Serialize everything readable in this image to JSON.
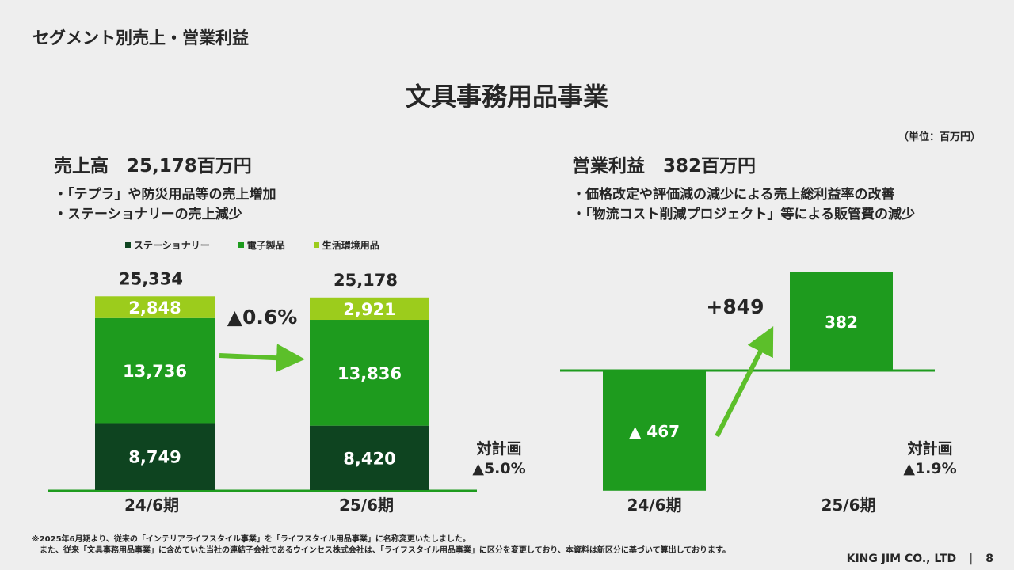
{
  "header": {
    "title": "セグメント別売上・営業利益"
  },
  "main_title": "文具事務用品事業",
  "unit_label": "（単位：百万円）",
  "left": {
    "title": "売上高　25,178百万円",
    "bullets": [
      "・「テプラ」や防災用品等の売上増加",
      "・ステーショナリーの売上減少"
    ],
    "legend": [
      {
        "label": "ステーショナリー",
        "color": "#0e4420"
      },
      {
        "label": "電子製品",
        "color": "#1e9b1e"
      },
      {
        "label": "生活環境用品",
        "color": "#9ccc1c"
      }
    ]
  },
  "right": {
    "title": "営業利益　382百万円",
    "bullets": [
      "・価格改定や評価減の減少による売上総利益率の改善",
      "・「物流コスト削減プロジェクト」等による販管費の減少"
    ]
  },
  "chart_data": [
    {
      "type": "bar",
      "stacked": true,
      "title": "売上高",
      "categories": [
        "24/6期",
        "25/6期"
      ],
      "series": [
        {
          "name": "ステーショナリー",
          "values": [
            8749,
            8420
          ],
          "labels": [
            "8,749",
            "8,420"
          ],
          "color": "#0e4420"
        },
        {
          "name": "電子製品",
          "values": [
            13736,
            13836
          ],
          "labels": [
            "13,736",
            "13,836"
          ],
          "color": "#1e9b1e"
        },
        {
          "name": "生活環境用品",
          "values": [
            2848,
            2921
          ],
          "labels": [
            "2,848",
            "2,921"
          ],
          "color": "#9ccc1c"
        }
      ],
      "totals": [
        25334,
        25178
      ],
      "total_labels": [
        "25,334",
        "25,178"
      ],
      "change_label": "▲0.6%",
      "plan_label": "対計画",
      "plan_value": "▲5.0%"
    },
    {
      "type": "bar",
      "title": "営業利益",
      "categories": [
        "24/6期",
        "25/6期"
      ],
      "values": [
        -467,
        382
      ],
      "labels": [
        "▲ 467",
        "382"
      ],
      "color": "#1e9b1e",
      "change_label": "+849",
      "plan_label": "対計画",
      "plan_value": "▲1.9%"
    }
  ],
  "footnotes": [
    "※2025年6月期より、従来の「インテリアライフスタイル事業」を「ライフスタイル用品事業」に名称変更いたしました。",
    "　また、従来「文具事務用品事業」に含めていた当社の連結子会社であるウインセス株式会社は、「ライフスタイル用品事業」に区分を変更しており、本資料は新区分に基づいて算出しております。"
  ],
  "footer": {
    "company": "KING JIM CO., LTD",
    "separator": "|",
    "page": "8"
  }
}
